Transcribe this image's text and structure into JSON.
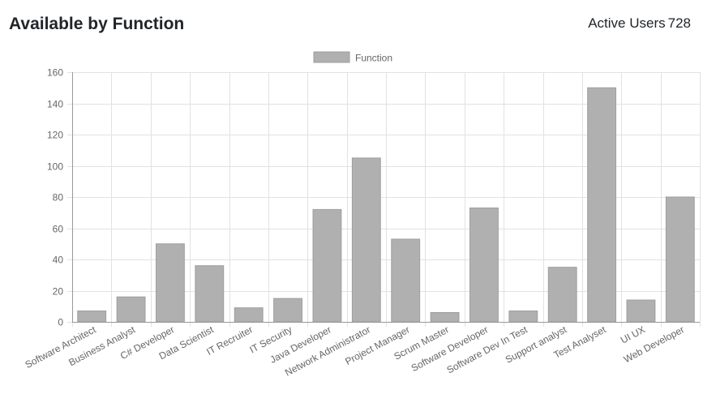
{
  "header": {
    "title": "Available by Function",
    "active_users_label": "Active Users",
    "active_users_value": "728"
  },
  "chart_data": {
    "type": "bar",
    "series": [
      {
        "name": "Function",
        "color": "#b0b0b0",
        "border_color": "#9e9e9e",
        "values": [
          7,
          16,
          50,
          36,
          9,
          15,
          72,
          105,
          53,
          6,
          73,
          7,
          35,
          150,
          14,
          80
        ]
      }
    ],
    "categories": [
      "Software Architect",
      "Business Analyst",
      "C# Developer",
      "Data Scientist",
      "IT Recruiter",
      "IT Security",
      "Java Developer",
      "Network Administrator",
      "Project Manager",
      "Scrum Master",
      "Software Developer",
      "Software Dev In Test",
      "Support analyst",
      "Test Analyset",
      "UI UX",
      "Web Developer"
    ],
    "ylim": [
      0,
      160
    ],
    "yticks": [
      0,
      20,
      40,
      60,
      80,
      100,
      120,
      140,
      160
    ],
    "grid": true,
    "legend_position": "top"
  }
}
